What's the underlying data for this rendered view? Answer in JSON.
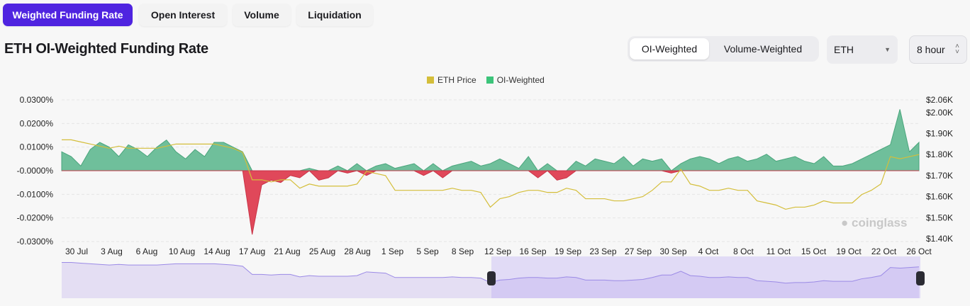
{
  "tabs": [
    "Weighted Funding Rate",
    "Open Interest",
    "Volume",
    "Liquidation"
  ],
  "title": "ETH OI-Weighted Funding Rate",
  "segment": {
    "options": [
      "OI-Weighted",
      "Volume-Weighted"
    ],
    "selected": "OI-Weighted"
  },
  "coin_select": {
    "value": "ETH"
  },
  "interval_select": {
    "value": "8 hour"
  },
  "watermark": "coinglass",
  "colors": {
    "accent": "#4f24e0",
    "price": "#d4be3a",
    "positive": "#6fbf9b",
    "negative": "#e0485a",
    "minimap": "#9b8ae6"
  },
  "chart_data": {
    "type": "area",
    "legend": [
      "ETH Price",
      "OI-Weighted"
    ],
    "legend_position": "top-center",
    "grid": true,
    "x_labels": [
      "30 Jul",
      "3 Aug",
      "6 Aug",
      "10 Aug",
      "14 Aug",
      "17 Aug",
      "21 Aug",
      "25 Aug",
      "28 Aug",
      "1 Sep",
      "5 Sep",
      "8 Sep",
      "12 Sep",
      "16 Sep",
      "19 Sep",
      "23 Sep",
      "27 Sep",
      "30 Sep",
      "4 Oct",
      "8 Oct",
      "11 Oct",
      "15 Oct",
      "19 Oct",
      "22 Oct",
      "26 Oct"
    ],
    "y_left": {
      "ticks": [
        "0.0300%",
        "0.0200%",
        "0.0100%",
        "-0.0000%",
        "-0.0100%",
        "-0.0200%",
        "-0.0300%"
      ],
      "range": [
        -0.03,
        0.03
      ]
    },
    "y_right": {
      "ticks": [
        "$2.06K",
        "$2.00K",
        "$1.90K",
        "$1.80K",
        "$1.70K",
        "$1.60K",
        "$1.50K",
        "$1.40K"
      ],
      "range": [
        1400,
        2060
      ]
    },
    "x_range": [
      "28 Jul",
      "26 Oct"
    ],
    "series": [
      {
        "name": "ETH Price",
        "unit": "USD",
        "values": [
          1870,
          1870,
          1860,
          1850,
          1840,
          1830,
          1840,
          1830,
          1830,
          1830,
          1830,
          1840,
          1850,
          1850,
          1850,
          1850,
          1850,
          1840,
          1830,
          1810,
          1680,
          1680,
          1670,
          1680,
          1680,
          1640,
          1660,
          1650,
          1650,
          1650,
          1650,
          1660,
          1720,
          1710,
          1700,
          1630,
          1630,
          1630,
          1630,
          1630,
          1630,
          1640,
          1630,
          1630,
          1620,
          1550,
          1590,
          1600,
          1620,
          1630,
          1630,
          1620,
          1620,
          1640,
          1630,
          1590,
          1590,
          1590,
          1580,
          1580,
          1590,
          1600,
          1630,
          1670,
          1670,
          1730,
          1660,
          1650,
          1630,
          1630,
          1640,
          1630,
          1630,
          1580,
          1570,
          1560,
          1540,
          1550,
          1550,
          1560,
          1580,
          1570,
          1570,
          1570,
          1610,
          1630,
          1660,
          1790,
          1780,
          1790,
          1800
        ]
      },
      {
        "name": "OI-Weighted",
        "unit": "%",
        "values": [
          0.008,
          0.006,
          0.002,
          0.009,
          0.012,
          0.01,
          0.006,
          0.011,
          0.009,
          0.006,
          0.01,
          0.013,
          0.008,
          0.005,
          0.009,
          0.006,
          0.012,
          0.012,
          0.01,
          0.008,
          -0.027,
          -0.006,
          -0.004,
          -0.005,
          -0.002,
          -0.003,
          0.001,
          -0.004,
          -0.003,
          0.002,
          -0.001,
          0.003,
          -0.002,
          0.002,
          0.003,
          0.001,
          0.002,
          0.003,
          -0.002,
          0.003,
          -0.003,
          0.002,
          0.003,
          0.004,
          0.002,
          0.003,
          0.005,
          0.003,
          0.001,
          0.006,
          -0.003,
          0.003,
          -0.004,
          -0.003,
          0.004,
          0.002,
          0.005,
          0.004,
          0.003,
          0.006,
          0.002,
          0.005,
          0.004,
          0.005,
          -0.001,
          0.003,
          0.005,
          0.006,
          0.005,
          0.003,
          0.005,
          0.006,
          0.004,
          0.005,
          0.007,
          0.004,
          0.005,
          0.006,
          0.004,
          0.003,
          0.006,
          0.002,
          0.002,
          0.003,
          0.005,
          0.007,
          0.009,
          0.011,
          0.026,
          0.008,
          0.012
        ]
      }
    ]
  }
}
